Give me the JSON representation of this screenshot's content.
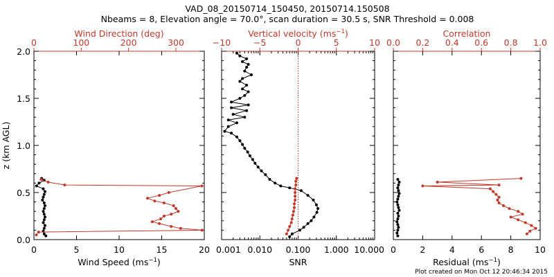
{
  "header": {
    "line1": "VAD_08_20150714_150450, 20150714.150508",
    "line2": "Nbeams = 8, Elevation angle = 70.0°, scan duration = 30.5 s, SNR Threshold = 0.008"
  },
  "footer": "Plot created on Mon Oct 12 20:46:34 2015",
  "colors": {
    "primary": "#000000",
    "secondary": "#c0392b"
  },
  "chart_data": [
    {
      "type": "line",
      "ylabel": "z (km AGL)",
      "ylim": [
        0,
        2
      ],
      "yticks": [
        "0.0",
        "0.5",
        "1.0",
        "1.5",
        "2.0"
      ],
      "bottom_axis": {
        "label_base": "Wind Speed (ms",
        "label_exp": "−1",
        "label_end": ")",
        "range": [
          0,
          20
        ],
        "ticks": [
          "0",
          "5",
          "10",
          "15",
          "20"
        ]
      },
      "top_axis": {
        "label": "Wind Direction (deg)",
        "range": [
          0,
          360
        ],
        "ticks": [
          "0",
          "100",
          "200",
          "300"
        ]
      },
      "series": [
        {
          "axis": "bottom",
          "color": "black",
          "points": [
            [
              1.4,
              0.04
            ],
            [
              1.2,
              0.06
            ],
            [
              1.1,
              0.09
            ],
            [
              1.2,
              0.12
            ],
            [
              1.3,
              0.15
            ],
            [
              1.1,
              0.18
            ],
            [
              1.2,
              0.21
            ],
            [
              1.3,
              0.24
            ],
            [
              1.2,
              0.27
            ],
            [
              1.1,
              0.3
            ],
            [
              1.2,
              0.33
            ],
            [
              1.3,
              0.36
            ],
            [
              1.2,
              0.39
            ],
            [
              1.0,
              0.42
            ],
            [
              1.1,
              0.45
            ],
            [
              1.2,
              0.48
            ],
            [
              1.3,
              0.51
            ],
            [
              1.1,
              0.54
            ],
            [
              0.3,
              0.57
            ],
            [
              0.6,
              0.6
            ],
            [
              1.2,
              0.63
            ],
            [
              0.9,
              0.65
            ]
          ]
        },
        {
          "axis": "top",
          "color": "red",
          "points": [
            [
              5,
              0.05
            ],
            [
              10,
              0.08
            ],
            [
              355,
              0.1
            ],
            [
              310,
              0.12
            ],
            [
              290,
              0.14
            ],
            [
              265,
              0.17
            ],
            [
              250,
              0.19
            ],
            [
              268,
              0.22
            ],
            [
              275,
              0.25
            ],
            [
              290,
              0.27
            ],
            [
              305,
              0.3
            ],
            [
              300,
              0.33
            ],
            [
              295,
              0.36
            ],
            [
              275,
              0.39
            ],
            [
              255,
              0.41
            ],
            [
              240,
              0.44
            ],
            [
              265,
              0.47
            ],
            [
              285,
              0.5
            ],
            [
              355,
              0.57
            ],
            [
              65,
              0.58
            ],
            [
              30,
              0.61
            ],
            [
              15,
              0.64
            ]
          ]
        }
      ]
    },
    {
      "type": "line",
      "xscale": "log",
      "bottom_axis": {
        "label": "SNR",
        "range": [
          0.001,
          10
        ],
        "ticks": [
          "0.001",
          "0.010",
          "0.100",
          "1.000",
          "10.000"
        ]
      },
      "top_axis": {
        "label_base": "Vertical velocity (ms",
        "label_exp": "−1",
        "label_end": ")",
        "range": [
          -10,
          10
        ],
        "ticks": [
          "−10",
          "−5",
          "0",
          "5",
          "10"
        ]
      },
      "zero_line": 0,
      "series": [
        {
          "axis": "bottom",
          "color": "black",
          "points": [
            [
              0.06,
              0.03
            ],
            [
              0.07,
              0.06
            ],
            [
              0.11,
              0.1
            ],
            [
              0.14,
              0.13
            ],
            [
              0.18,
              0.17
            ],
            [
              0.22,
              0.2
            ],
            [
              0.26,
              0.24
            ],
            [
              0.31,
              0.29
            ],
            [
              0.33,
              0.33
            ],
            [
              0.3,
              0.37
            ],
            [
              0.25,
              0.42
            ],
            [
              0.18,
              0.47
            ],
            [
              0.12,
              0.52
            ],
            [
              0.06,
              0.55
            ],
            [
              0.035,
              0.57
            ],
            [
              0.025,
              0.6
            ],
            [
              0.018,
              0.64
            ],
            [
              0.014,
              0.69
            ],
            [
              0.011,
              0.73
            ],
            [
              0.009,
              0.77
            ],
            [
              0.0075,
              0.81
            ],
            [
              0.0065,
              0.85
            ],
            [
              0.0055,
              0.89
            ],
            [
              0.0048,
              0.93
            ],
            [
              0.004,
              0.97
            ],
            [
              0.0035,
              1.01
            ],
            [
              0.003,
              1.05
            ],
            [
              0.0025,
              1.09
            ],
            [
              0.0018,
              1.13
            ],
            [
              0.0012,
              1.15
            ],
            [
              0.0015,
              1.2
            ],
            [
              0.0025,
              1.24
            ],
            [
              0.0015,
              1.27
            ],
            [
              0.004,
              1.3
            ],
            [
              0.002,
              1.33
            ],
            [
              0.0045,
              1.37
            ],
            [
              0.0018,
              1.4
            ],
            [
              0.005,
              1.43
            ],
            [
              0.0018,
              1.46
            ],
            [
              0.003,
              1.5
            ],
            [
              0.004,
              1.53
            ],
            [
              0.005,
              1.57
            ],
            [
              0.0035,
              1.6
            ],
            [
              0.0045,
              1.64
            ],
            [
              0.003,
              1.68
            ],
            [
              0.0035,
              1.71
            ],
            [
              0.006,
              1.75
            ],
            [
              0.004,
              1.79
            ],
            [
              0.0045,
              1.83
            ],
            [
              0.005,
              1.86
            ],
            [
              0.0035,
              1.89
            ],
            [
              0.0045,
              1.92
            ],
            [
              0.003,
              1.95
            ],
            [
              0.0025,
              1.98
            ]
          ]
        },
        {
          "axis": "top",
          "color": "red",
          "points": [
            [
              -1.5,
              0.06
            ],
            [
              -1.3,
              0.1
            ],
            [
              -1.1,
              0.14
            ],
            [
              -0.9,
              0.18
            ],
            [
              -0.8,
              0.22
            ],
            [
              -0.7,
              0.26
            ],
            [
              -0.6,
              0.3
            ],
            [
              -0.5,
              0.34
            ],
            [
              -0.5,
              0.38
            ],
            [
              -0.4,
              0.42
            ],
            [
              -0.4,
              0.46
            ],
            [
              -0.4,
              0.5
            ],
            [
              -0.4,
              0.54
            ],
            [
              -0.3,
              0.58
            ],
            [
              -0.3,
              0.62
            ],
            [
              -0.2,
              0.65
            ]
          ]
        }
      ]
    },
    {
      "type": "line",
      "bottom_axis": {
        "label_base": "Residual (ms",
        "label_exp": "−1",
        "label_end": ")",
        "range": [
          0,
          10
        ],
        "ticks": [
          "0",
          "2",
          "4",
          "6",
          "8",
          "10"
        ]
      },
      "top_axis": {
        "label": "Correlation",
        "range": [
          0,
          1
        ],
        "ticks": [
          "0.0",
          "0.2",
          "0.4",
          "0.6",
          "0.8",
          "1.0"
        ]
      },
      "series": [
        {
          "axis": "bottom",
          "color": "black",
          "points": [
            [
              0.3,
              0.04
            ],
            [
              0.25,
              0.07
            ],
            [
              0.3,
              0.1
            ],
            [
              0.35,
              0.13
            ],
            [
              0.3,
              0.16
            ],
            [
              0.25,
              0.19
            ],
            [
              0.3,
              0.22
            ],
            [
              0.35,
              0.25
            ],
            [
              0.3,
              0.28
            ],
            [
              0.4,
              0.31
            ],
            [
              0.35,
              0.34
            ],
            [
              0.3,
              0.37
            ],
            [
              0.25,
              0.4
            ],
            [
              0.3,
              0.43
            ],
            [
              0.35,
              0.46
            ],
            [
              0.4,
              0.49
            ],
            [
              0.35,
              0.52
            ],
            [
              0.3,
              0.55
            ],
            [
              0.35,
              0.58
            ],
            [
              0.4,
              0.61
            ],
            [
              0.3,
              0.64
            ]
          ]
        },
        {
          "axis": "top",
          "color": "red",
          "points": [
            [
              0.91,
              0.06
            ],
            [
              0.93,
              0.09
            ],
            [
              0.97,
              0.12
            ],
            [
              0.94,
              0.15
            ],
            [
              0.9,
              0.18
            ],
            [
              0.85,
              0.21
            ],
            [
              0.8,
              0.24
            ],
            [
              0.88,
              0.27
            ],
            [
              0.85,
              0.3
            ],
            [
              0.79,
              0.33
            ],
            [
              0.75,
              0.36
            ],
            [
              0.72,
              0.39
            ],
            [
              0.71,
              0.42
            ],
            [
              0.72,
              0.45
            ],
            [
              0.7,
              0.48
            ],
            [
              0.68,
              0.51
            ],
            [
              0.66,
              0.54
            ],
            [
              0.2,
              0.57
            ],
            [
              0.72,
              0.58
            ],
            [
              0.3,
              0.61
            ],
            [
              0.87,
              0.65
            ]
          ]
        }
      ]
    }
  ]
}
